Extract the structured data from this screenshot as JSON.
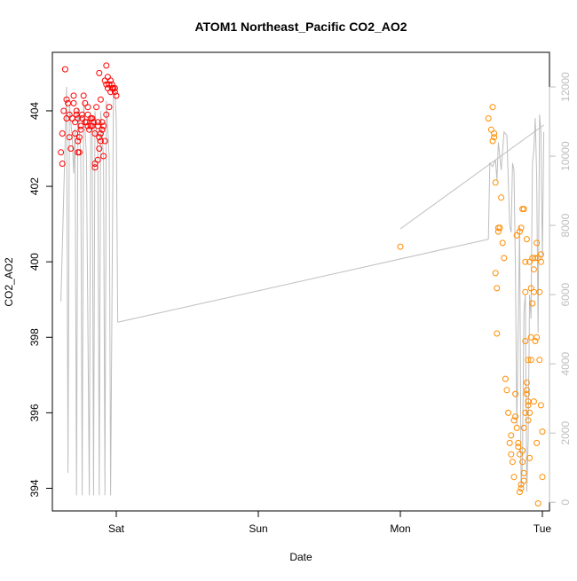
{
  "chart_data": {
    "type": "scatter",
    "title": "ATOM1 Northeast_Pacific CO2_AO2",
    "xlabel": "Date",
    "ylabel": "CO2_AO2",
    "x_tick_labels": [
      "Sat",
      "Sun",
      "Mon",
      "Tue"
    ],
    "x_tick_values": [
      0,
      1,
      2,
      3
    ],
    "xlim": [
      -0.45,
      3.05
    ],
    "ylim": [
      393.4,
      405.55
    ],
    "y_ticks": [
      394,
      396,
      398,
      400,
      402,
      404
    ],
    "y2_ticks": [
      0,
      2000,
      4000,
      6000,
      8000,
      10000,
      12000
    ],
    "y2lim": [
      -250,
      13000
    ],
    "grid": false,
    "colors": {
      "series1": "#ff0000",
      "series2": "#ff8c00",
      "secondary_line": "#bebebe",
      "axis": "#000000"
    },
    "series": [
      {
        "axis": "left",
        "color": "#ff0000",
        "marker": "open-circle",
        "x": [
          -0.39,
          -0.38,
          -0.37,
          -0.36,
          -0.35,
          -0.35,
          -0.34,
          -0.33,
          -0.33,
          -0.32,
          -0.31,
          -0.3,
          -0.29,
          -0.29,
          -0.28,
          -0.28,
          -0.27,
          -0.26,
          -0.25,
          -0.25,
          -0.24,
          -0.24,
          -0.23,
          -0.22,
          -0.21,
          -0.2,
          -0.2,
          -0.19,
          -0.18,
          -0.18,
          -0.17,
          -0.17,
          -0.16,
          -0.15,
          -0.15,
          -0.14,
          -0.13,
          -0.13,
          -0.12,
          -0.11,
          -0.11,
          -0.1,
          -0.1,
          -0.09,
          -0.08,
          -0.08,
          -0.07,
          -0.07,
          -0.06,
          -0.06,
          -0.05,
          -0.04,
          -0.04,
          -0.03,
          -0.03,
          -0.02,
          -0.01,
          -0.01,
          0.0,
          -0.38,
          -0.27,
          -0.26,
          -0.22,
          -0.2,
          -0.17,
          -0.12,
          -0.12,
          -0.11,
          -0.05,
          -0.07,
          -0.1,
          -0.09,
          -0.13,
          -0.15,
          -0.27,
          -0.3
        ],
        "y": [
          402.9,
          403.4,
          404.0,
          405.1,
          404.3,
          403.8,
          404.2,
          403.3,
          403.9,
          403.0,
          403.8,
          404.4,
          403.7,
          403.4,
          403.9,
          404.0,
          403.8,
          403.3,
          403.6,
          403.5,
          403.9,
          403.8,
          404.4,
          403.7,
          403.7,
          403.9,
          404.1,
          403.5,
          403.8,
          403.6,
          403.8,
          403.6,
          403.7,
          403.4,
          402.5,
          404.1,
          403.7,
          403.6,
          405.0,
          404.3,
          403.4,
          403.7,
          403.5,
          402.8,
          403.2,
          404.8,
          404.7,
          405.2,
          404.9,
          404.6,
          404.7,
          404.8,
          404.5,
          404.6,
          404.7,
          404.6,
          404.5,
          404.6,
          404.4,
          402.6,
          403.2,
          402.9,
          404.2,
          403.6,
          403.8,
          403.0,
          403.3,
          403.2,
          404.1,
          403.9,
          403.5,
          403.6,
          402.7,
          402.6,
          402.9,
          404.2
        ]
      },
      {
        "axis": "left",
        "color": "#ff8c00",
        "marker": "open-circle",
        "x": [
          2.0,
          2.62,
          2.64,
          2.65,
          2.65,
          2.66,
          2.66,
          2.67,
          2.67,
          2.68,
          2.68,
          2.69,
          2.69,
          2.7,
          2.71,
          2.72,
          2.73,
          2.74,
          2.75,
          2.76,
          2.77,
          2.78,
          2.78,
          2.79,
          2.8,
          2.8,
          2.81,
          2.81,
          2.82,
          2.83,
          2.83,
          2.84,
          2.84,
          2.85,
          2.85,
          2.86,
          2.86,
          2.87,
          2.87,
          2.87,
          2.88,
          2.88,
          2.88,
          2.89,
          2.89,
          2.89,
          2.9,
          2.9,
          2.9,
          2.91,
          2.91,
          2.92,
          2.92,
          2.93,
          2.93,
          2.94,
          2.94,
          2.95,
          2.95,
          2.96,
          2.96,
          2.97,
          2.97,
          2.98,
          2.98,
          2.99,
          2.99,
          3.0,
          3.0,
          2.88,
          2.9,
          2.92,
          2.94,
          2.96,
          2.99,
          2.87,
          2.89,
          2.91,
          2.86,
          2.82,
          2.84,
          2.85
        ],
        "y": [
          400.4,
          403.8,
          403.5,
          404.1,
          403.2,
          403.4,
          403.3,
          402.1,
          399.7,
          399.3,
          398.1,
          400.9,
          400.8,
          400.9,
          401.7,
          400.5,
          400.1,
          396.9,
          396.6,
          396.0,
          395.2,
          394.9,
          395.4,
          394.7,
          395.8,
          394.3,
          396.5,
          395.9,
          395.6,
          395.1,
          395.2,
          394.9,
          393.9,
          394.0,
          394.1,
          395.0,
          394.7,
          394.4,
          395.6,
          394.2,
          400.0,
          399.2,
          397.9,
          396.8,
          396.6,
          396.5,
          395.8,
          396.3,
          396.2,
          394.8,
          396.0,
          397.4,
          399.3,
          400.1,
          398.9,
          399.2,
          399.8,
          400.1,
          397.9,
          400.5,
          398.0,
          393.6,
          400.1,
          399.2,
          397.4,
          396.2,
          400.0,
          395.5,
          394.3,
          396.0,
          397.4,
          398.0,
          396.3,
          395.2,
          400.2,
          401.4,
          400.6,
          400.0,
          401.4,
          400.7,
          400.8,
          400.9
        ]
      }
    ],
    "secondary_series": {
      "axis": "right",
      "color": "#bebebe",
      "segments": [
        {
          "x": [
            -0.39,
            -0.35,
            -0.34,
            -0.33,
            -0.31,
            -0.3,
            -0.29,
            -0.28,
            -0.27,
            -0.25,
            -0.24,
            -0.23,
            -0.21,
            -0.19,
            -0.18,
            -0.17,
            -0.16,
            -0.15,
            -0.13,
            -0.12,
            -0.11,
            -0.09,
            -0.08,
            -0.07,
            -0.05,
            -0.04,
            -0.02,
            -0.01,
            0.0,
            0.01
          ],
          "y": [
            5800,
            12000,
            850,
            11500,
            10500,
            9500,
            10800,
            200,
            11400,
            10000,
            200,
            11600,
            10000,
            200,
            11200,
            11000,
            200,
            11300,
            10200,
            200,
            11300,
            10000,
            200,
            11600,
            10000,
            200,
            11800,
            12000,
            11000,
            5200
          ]
        },
        {
          "x": [
            0.01,
            2.62
          ],
          "y": [
            5200,
            7600
          ]
        },
        {
          "x": [
            2.62,
            2.63,
            2.65,
            2.67,
            2.68,
            2.69,
            2.71,
            2.73,
            2.75,
            2.77,
            2.78,
            2.79,
            2.8,
            2.81,
            2.82,
            2.84,
            2.85,
            2.86,
            2.87,
            2.88,
            2.89,
            2.9,
            2.91,
            2.92,
            2.93,
            2.94,
            2.95,
            2.96,
            2.97,
            2.98,
            2.99,
            3.0,
            3.01
          ],
          "y": [
            7600,
            9800,
            9700,
            9900,
            9300,
            10400,
            9600,
            10700,
            10600,
            8000,
            7800,
            9800,
            9600,
            6800,
            2200,
            8000,
            400,
            1200,
            5500,
            6000,
            300,
            1800,
            6000,
            5300,
            9800,
            10200,
            11100,
            9400,
            4900,
            11200,
            10700,
            7000,
            10700
          ]
        },
        {
          "x": [
            2.0,
            3.01
          ],
          "y": [
            7900,
            10900
          ]
        }
      ]
    }
  }
}
